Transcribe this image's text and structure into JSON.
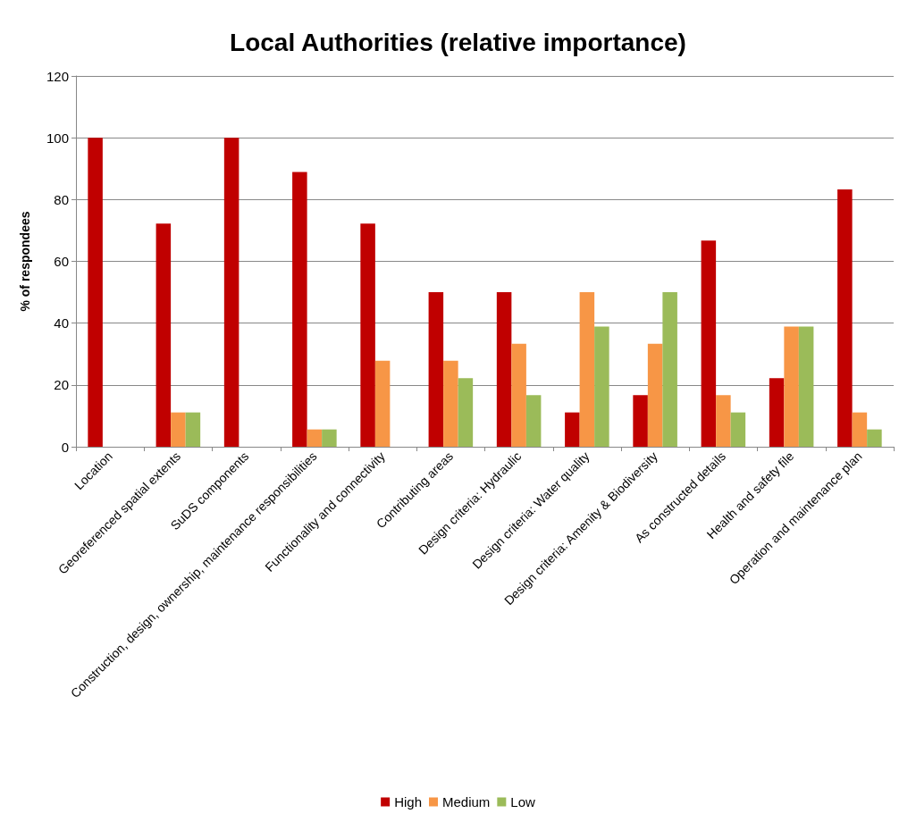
{
  "chart_data": {
    "type": "bar",
    "title": "Local Authorities (relative importance)",
    "ylabel": "% of respondees",
    "categories": [
      "Location",
      "Georeferenced spatial extents",
      "SuDS components",
      "Construction, design, ownership, maintenance responsibilities",
      "Functionality and connectivity",
      "Contributing areas",
      "Design criteria: Hydraulic",
      "Design criteria: Water quality",
      "Design criteria: Amenity & Biodiversity",
      "As constructed details",
      "Health and safety file",
      "Operation and maintenance plan"
    ],
    "series": [
      {
        "name": "High",
        "color": "#c00000",
        "values": [
          100,
          72.2,
          100,
          88.9,
          72.2,
          50,
          50,
          11.1,
          16.7,
          66.7,
          22.2,
          83.3
        ]
      },
      {
        "name": "Medium",
        "color": "#f79646",
        "values": [
          0,
          11.1,
          0,
          5.6,
          27.8,
          27.8,
          33.3,
          50,
          33.3,
          16.7,
          38.9,
          11.1
        ]
      },
      {
        "name": "Low",
        "color": "#9bbb59",
        "values": [
          0,
          11.1,
          0,
          5.6,
          0,
          22.2,
          16.7,
          38.9,
          50,
          11.1,
          38.9,
          5.6
        ]
      }
    ],
    "ylim": [
      0,
      120
    ],
    "yticks": [
      0,
      20,
      40,
      60,
      80,
      100,
      120
    ],
    "grid": "y",
    "legend": "bottom"
  }
}
